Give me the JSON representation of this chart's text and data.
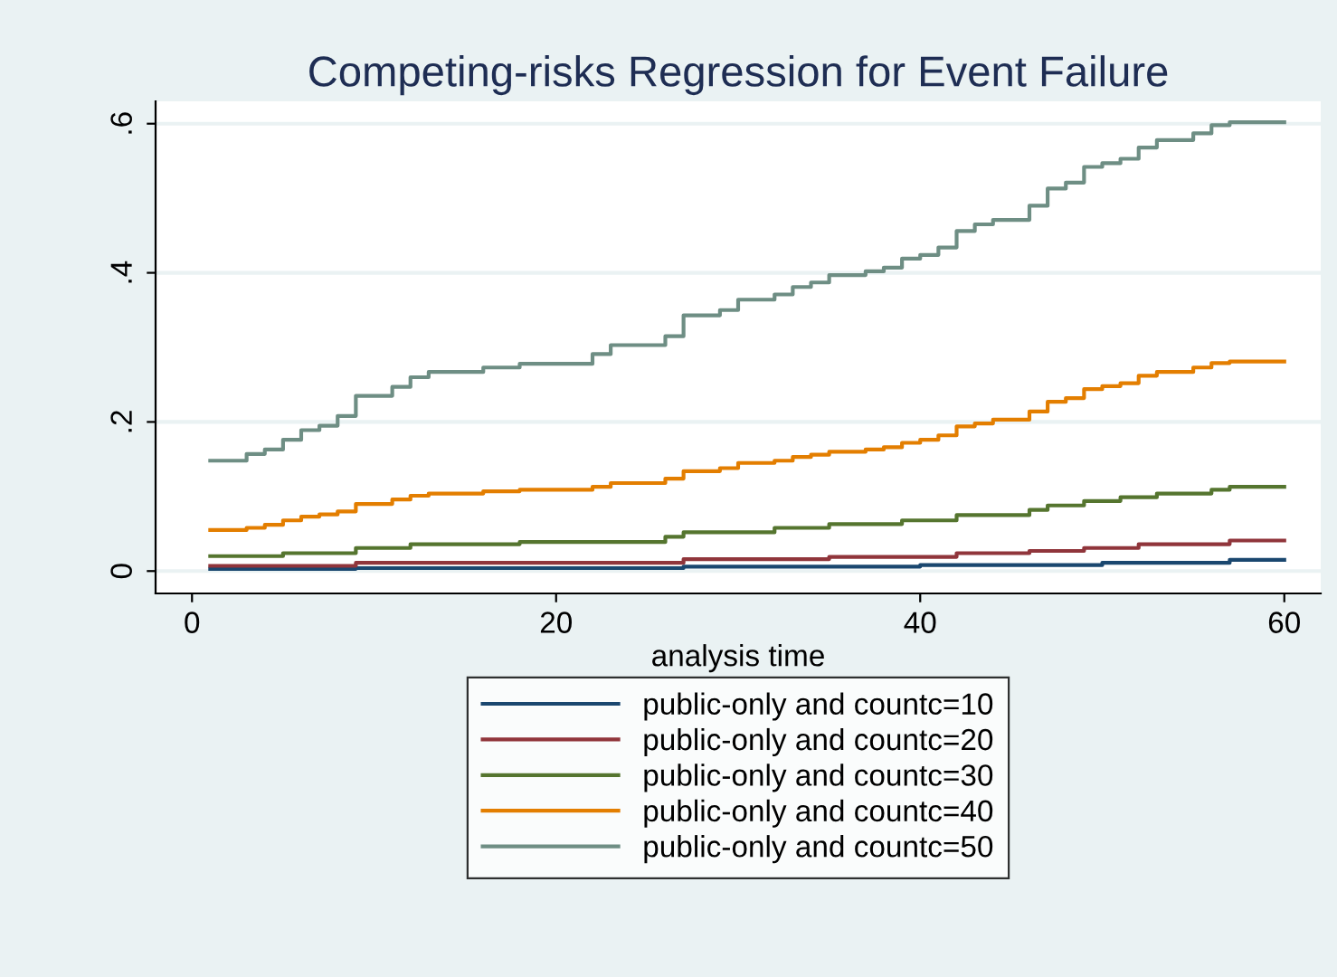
{
  "chart_data": {
    "type": "step",
    "title": "Competing-risks Regression for Event Failure",
    "xlabel": "analysis time",
    "xlim": [
      -2,
      62
    ],
    "ylim": [
      -0.03,
      0.63
    ],
    "xticks": [
      0,
      20,
      40,
      60
    ],
    "yticks": [
      {
        "value": 0,
        "label": "0"
      },
      {
        "value": 0.2,
        "label": ".2"
      },
      {
        "value": 0.4,
        "label": ".4"
      },
      {
        "value": 0.6,
        "label": ".6"
      }
    ],
    "grid": "y",
    "legend": "bottom",
    "series": [
      {
        "name": "public-only and countc=10",
        "color": "#1a476f",
        "x": [
          1,
          9,
          27,
          40,
          50,
          57,
          60
        ],
        "values": [
          0.003,
          0.004,
          0.006,
          0.008,
          0.011,
          0.015,
          0.015
        ]
      },
      {
        "name": "public-only and countc=20",
        "color": "#90353b",
        "x": [
          1,
          9,
          27,
          35,
          42,
          46,
          49,
          52,
          57,
          60
        ],
        "values": [
          0.007,
          0.011,
          0.016,
          0.019,
          0.024,
          0.027,
          0.031,
          0.036,
          0.041,
          0.041
        ]
      },
      {
        "name": "public-only and countc=30",
        "color": "#55752f",
        "x": [
          1,
          5,
          9,
          12,
          18,
          26,
          27,
          32,
          35,
          39,
          42,
          46,
          47,
          49,
          51,
          53,
          56,
          57,
          60
        ],
        "values": [
          0.02,
          0.024,
          0.031,
          0.036,
          0.039,
          0.046,
          0.052,
          0.058,
          0.063,
          0.068,
          0.075,
          0.082,
          0.088,
          0.094,
          0.099,
          0.104,
          0.109,
          0.113,
          0.113
        ]
      },
      {
        "name": "public-only and countc=40",
        "color": "#e37e00",
        "x": [
          1,
          3,
          4,
          5,
          6,
          7,
          8,
          9,
          11,
          12,
          13,
          16,
          18,
          22,
          23,
          26,
          27,
          29,
          30,
          32,
          33,
          34,
          35,
          37,
          38,
          39,
          40,
          41,
          42,
          43,
          44,
          46,
          47,
          48,
          49,
          50,
          51,
          52,
          53,
          55,
          56,
          57,
          60
        ],
        "values": [
          0.055,
          0.058,
          0.062,
          0.068,
          0.073,
          0.076,
          0.08,
          0.09,
          0.096,
          0.101,
          0.104,
          0.107,
          0.109,
          0.113,
          0.118,
          0.124,
          0.134,
          0.138,
          0.145,
          0.148,
          0.153,
          0.156,
          0.16,
          0.163,
          0.166,
          0.172,
          0.176,
          0.182,
          0.194,
          0.198,
          0.203,
          0.214,
          0.227,
          0.232,
          0.244,
          0.248,
          0.252,
          0.262,
          0.267,
          0.273,
          0.279,
          0.281,
          0.281
        ]
      },
      {
        "name": "public-only and countc=50",
        "color": "#6e8e84",
        "x": [
          1,
          3,
          4,
          5,
          6,
          7,
          8,
          9,
          11,
          12,
          13,
          16,
          18,
          22,
          23,
          26,
          27,
          29,
          30,
          32,
          33,
          34,
          35,
          37,
          38,
          39,
          40,
          41,
          42,
          43,
          44,
          46,
          47,
          48,
          49,
          50,
          51,
          52,
          53,
          55,
          56,
          57,
          60
        ],
        "values": [
          0.148,
          0.157,
          0.163,
          0.176,
          0.189,
          0.195,
          0.208,
          0.235,
          0.247,
          0.26,
          0.267,
          0.273,
          0.278,
          0.291,
          0.303,
          0.315,
          0.343,
          0.35,
          0.364,
          0.371,
          0.381,
          0.387,
          0.397,
          0.402,
          0.407,
          0.419,
          0.424,
          0.434,
          0.456,
          0.465,
          0.471,
          0.49,
          0.513,
          0.521,
          0.542,
          0.547,
          0.553,
          0.568,
          0.578,
          0.587,
          0.598,
          0.602,
          0.602
        ]
      }
    ]
  }
}
